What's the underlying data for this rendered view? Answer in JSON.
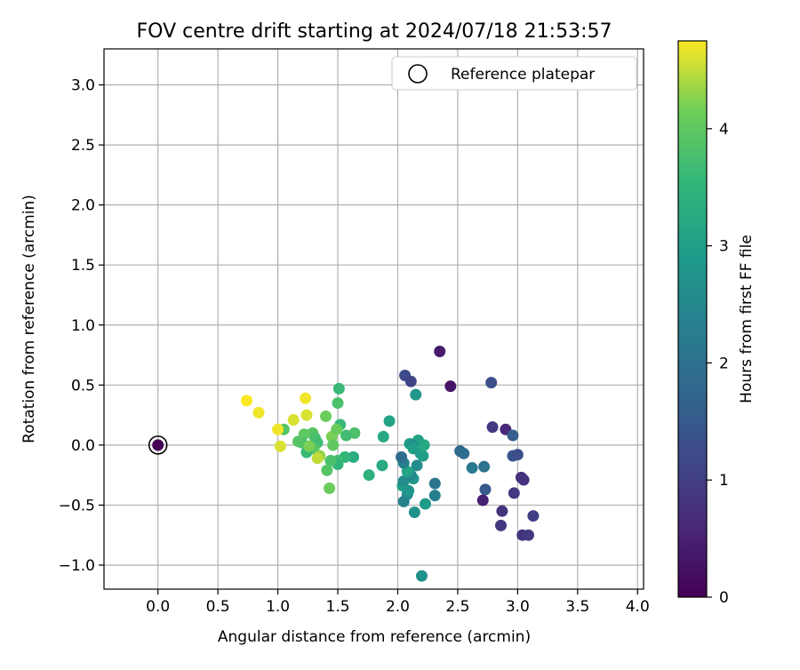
{
  "chart_data": {
    "type": "scatter",
    "title": "FOV centre drift starting at 2024/07/18 21:53:57",
    "xlabel": "Angular distance from reference (arcmin)",
    "ylabel": "Rotation from reference (arcmin)",
    "xlim": [
      -0.45,
      4.05
    ],
    "ylim": [
      -1.2,
      3.3
    ],
    "xticks": [
      0.0,
      0.5,
      1.0,
      1.5,
      2.0,
      2.5,
      3.0,
      3.5,
      4.0
    ],
    "xtick_labels": [
      "0.0",
      "0.5",
      "1.0",
      "1.5",
      "2.0",
      "2.5",
      "3.0",
      "3.5",
      "4.0"
    ],
    "yticks": [
      -1.0,
      -0.5,
      0.0,
      0.5,
      1.0,
      1.5,
      2.0,
      2.5,
      3.0
    ],
    "ytick_labels": [
      "−1.0",
      "−0.5",
      "0.0",
      "0.5",
      "1.0",
      "1.5",
      "2.0",
      "2.5",
      "3.0"
    ],
    "grid": true,
    "legend": {
      "placement": "upper-right",
      "entries": [
        "Reference platepar"
      ]
    },
    "reference_point": {
      "x": 0.0,
      "y": 0.0,
      "hours": 0.0
    },
    "colorbar": {
      "label": "Hours from first FF file",
      "colormap": "viridis",
      "range": [
        0,
        4.75
      ],
      "ticks": [
        0,
        1,
        2,
        3,
        4
      ],
      "tick_labels": [
        "0",
        "1",
        "2",
        "3",
        "4"
      ]
    },
    "points": [
      {
        "x": 2.35,
        "y": 0.78,
        "h": 0.4
      },
      {
        "x": 2.44,
        "y": 0.49,
        "h": 0.3
      },
      {
        "x": 2.06,
        "y": 0.58,
        "h": 1.2
      },
      {
        "x": 2.11,
        "y": 0.53,
        "h": 1.1
      },
      {
        "x": 2.78,
        "y": 0.52,
        "h": 1.3
      },
      {
        "x": 2.79,
        "y": 0.15,
        "h": 0.9
      },
      {
        "x": 2.9,
        "y": 0.13,
        "h": 0.6
      },
      {
        "x": 2.96,
        "y": 0.08,
        "h": 1.6
      },
      {
        "x": 2.96,
        "y": -0.09,
        "h": 1.4
      },
      {
        "x": 3.0,
        "y": -0.08,
        "h": 1.3
      },
      {
        "x": 3.03,
        "y": -0.27,
        "h": 0.7
      },
      {
        "x": 3.05,
        "y": -0.29,
        "h": 0.8
      },
      {
        "x": 2.97,
        "y": -0.4,
        "h": 0.9
      },
      {
        "x": 2.73,
        "y": -0.37,
        "h": 1.5
      },
      {
        "x": 2.71,
        "y": -0.46,
        "h": 0.5
      },
      {
        "x": 2.87,
        "y": -0.55,
        "h": 0.8
      },
      {
        "x": 2.86,
        "y": -0.67,
        "h": 0.9
      },
      {
        "x": 3.04,
        "y": -0.75,
        "h": 0.8
      },
      {
        "x": 3.09,
        "y": -0.75,
        "h": 0.9
      },
      {
        "x": 3.13,
        "y": -0.59,
        "h": 1.0
      },
      {
        "x": 2.52,
        "y": -0.05,
        "h": 1.8
      },
      {
        "x": 2.55,
        "y": -0.07,
        "h": 1.9
      },
      {
        "x": 2.62,
        "y": -0.19,
        "h": 2.2
      },
      {
        "x": 2.72,
        "y": -0.18,
        "h": 2.0
      },
      {
        "x": 2.15,
        "y": 0.42,
        "h": 2.8
      },
      {
        "x": 2.31,
        "y": -0.32,
        "h": 2.1
      },
      {
        "x": 2.31,
        "y": -0.42,
        "h": 2.3
      },
      {
        "x": 2.2,
        "y": -1.09,
        "h": 2.7
      },
      {
        "x": 2.23,
        "y": -0.49,
        "h": 2.9
      },
      {
        "x": 2.14,
        "y": -0.56,
        "h": 2.7
      },
      {
        "x": 2.05,
        "y": -0.47,
        "h": 2.4
      },
      {
        "x": 2.08,
        "y": -0.41,
        "h": 2.5
      },
      {
        "x": 2.04,
        "y": -0.34,
        "h": 3.0
      },
      {
        "x": 2.09,
        "y": -0.38,
        "h": 2.8
      },
      {
        "x": 2.05,
        "y": -0.3,
        "h": 2.6
      },
      {
        "x": 2.13,
        "y": -0.28,
        "h": 2.9
      },
      {
        "x": 2.11,
        "y": -0.25,
        "h": 2.5
      },
      {
        "x": 2.08,
        "y": -0.22,
        "h": 3.1
      },
      {
        "x": 2.16,
        "y": -0.17,
        "h": 2.6
      },
      {
        "x": 2.05,
        "y": -0.15,
        "h": 2.4
      },
      {
        "x": 2.03,
        "y": -0.1,
        "h": 1.9
      },
      {
        "x": 2.19,
        "y": -0.07,
        "h": 2.8
      },
      {
        "x": 2.21,
        "y": -0.09,
        "h": 3.0
      },
      {
        "x": 2.22,
        "y": 0.0,
        "h": 3.2
      },
      {
        "x": 2.17,
        "y": 0.04,
        "h": 3.1
      },
      {
        "x": 2.1,
        "y": 0.01,
        "h": 2.9
      },
      {
        "x": 2.13,
        "y": 0.0,
        "h": 2.7
      },
      {
        "x": 2.13,
        "y": -0.03,
        "h": 3.0
      },
      {
        "x": 1.93,
        "y": 0.2,
        "h": 3.1
      },
      {
        "x": 1.88,
        "y": 0.07,
        "h": 3.2
      },
      {
        "x": 1.87,
        "y": -0.17,
        "h": 3.2
      },
      {
        "x": 1.76,
        "y": -0.25,
        "h": 3.4
      },
      {
        "x": 1.63,
        "y": -0.1,
        "h": 3.3
      },
      {
        "x": 1.64,
        "y": 0.1,
        "h": 3.8
      },
      {
        "x": 1.57,
        "y": 0.08,
        "h": 3.7
      },
      {
        "x": 1.52,
        "y": 0.17,
        "h": 3.6
      },
      {
        "x": 1.51,
        "y": 0.47,
        "h": 3.6
      },
      {
        "x": 1.5,
        "y": 0.35,
        "h": 3.8
      },
      {
        "x": 1.56,
        "y": -0.1,
        "h": 3.5
      },
      {
        "x": 1.5,
        "y": -0.13,
        "h": 3.7
      },
      {
        "x": 1.5,
        "y": -0.16,
        "h": 3.5
      },
      {
        "x": 1.44,
        "y": -0.13,
        "h": 3.8
      },
      {
        "x": 1.41,
        "y": -0.21,
        "h": 3.9
      },
      {
        "x": 1.43,
        "y": -0.36,
        "h": 4.1
      },
      {
        "x": 1.4,
        "y": 0.24,
        "h": 4.1
      },
      {
        "x": 1.45,
        "y": 0.07,
        "h": 4.2
      },
      {
        "x": 1.46,
        "y": 0.0,
        "h": 4.0
      },
      {
        "x": 1.49,
        "y": 0.13,
        "h": 4.1
      },
      {
        "x": 1.29,
        "y": 0.1,
        "h": 3.9
      },
      {
        "x": 1.31,
        "y": 0.06,
        "h": 3.8
      },
      {
        "x": 1.33,
        "y": 0.02,
        "h": 3.7
      },
      {
        "x": 1.3,
        "y": -0.03,
        "h": 3.9
      },
      {
        "x": 1.24,
        "y": -0.06,
        "h": 3.6
      },
      {
        "x": 1.22,
        "y": 0.09,
        "h": 4.0
      },
      {
        "x": 1.2,
        "y": 0.02,
        "h": 3.8
      },
      {
        "x": 1.17,
        "y": 0.03,
        "h": 3.9
      },
      {
        "x": 1.26,
        "y": -0.01,
        "h": 4.2
      },
      {
        "x": 1.35,
        "y": -0.09,
        "h": 4.3
      },
      {
        "x": 1.33,
        "y": -0.11,
        "h": 4.5
      },
      {
        "x": 1.24,
        "y": 0.25,
        "h": 4.6
      },
      {
        "x": 1.23,
        "y": 0.39,
        "h": 4.7
      },
      {
        "x": 1.13,
        "y": 0.21,
        "h": 4.6
      },
      {
        "x": 1.05,
        "y": 0.13,
        "h": 3.9
      },
      {
        "x": 1.0,
        "y": 0.13,
        "h": 4.7
      },
      {
        "x": 1.02,
        "y": -0.01,
        "h": 4.6
      },
      {
        "x": 0.84,
        "y": 0.27,
        "h": 4.7
      },
      {
        "x": 0.74,
        "y": 0.37,
        "h": 4.75
      }
    ]
  }
}
